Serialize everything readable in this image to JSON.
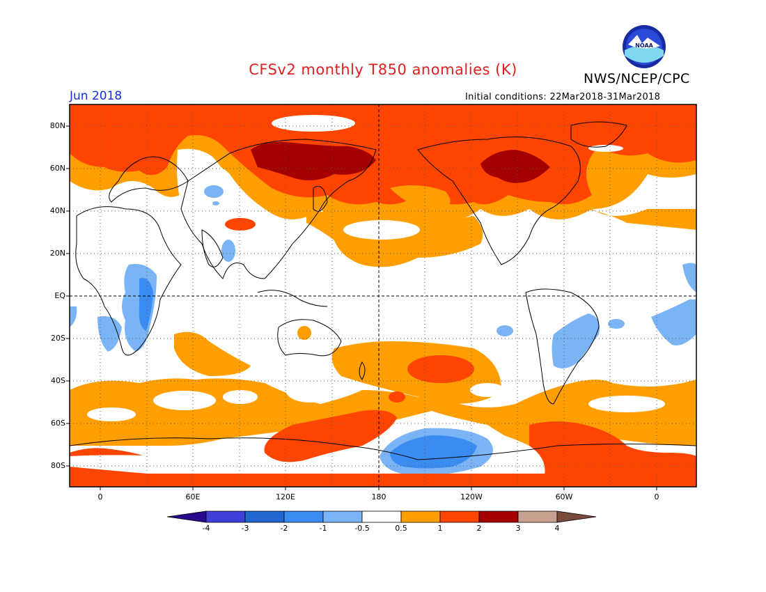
{
  "header": {
    "title": "CFSv2 monthly T850 anomalies (K)",
    "org": "NWS/NCEP/CPC",
    "month": "Jun 2018",
    "initial_conditions": "Initial conditions: 22Mar2018-31Mar2018",
    "logo_text": "NOAA"
  },
  "axes": {
    "lat_labels": [
      "80N",
      "60N",
      "40N",
      "20N",
      "EQ",
      "20S",
      "40S",
      "60S",
      "80S"
    ],
    "lon_labels": [
      "0",
      "60E",
      "120E",
      "180",
      "120W",
      "60W",
      "0"
    ]
  },
  "colorbar": {
    "labels": [
      "-4",
      "-3",
      "-2",
      "-1",
      "-0.5",
      "0.5",
      "1",
      "2",
      "3",
      "4"
    ],
    "colors": [
      "#2a0a8c",
      "#4040d8",
      "#2266d0",
      "#3a8cf0",
      "#7ab4f4",
      "#ffffff",
      "#ff9e00",
      "#ff4500",
      "#a50000",
      "#c8a090",
      "#7a4a3a"
    ]
  },
  "palette": {
    "anomaly_05_1": "#ff9e00",
    "anomaly_1_2": "#ff4500",
    "anomaly_2_3": "#a50000",
    "anomaly_m1_m05": "#7ab4f4",
    "anomaly_m2_m1": "#3a8cf0",
    "anomaly_m3_m2": "#2266d0"
  }
}
